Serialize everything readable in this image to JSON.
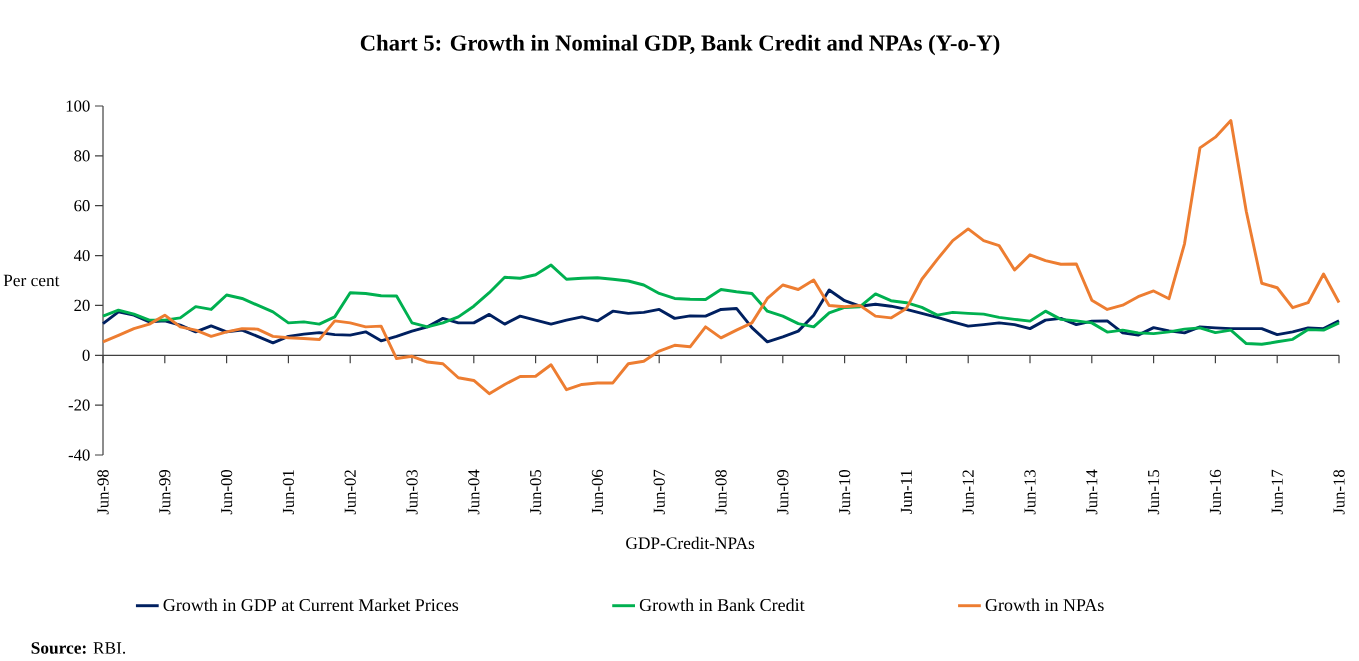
{
  "chart_data": {
    "type": "line",
    "title": "Chart 5: Growth in Nominal GDP, Bank Credit and NPAs (Y-o-Y)",
    "xlabel": "GDP-Credit-NPAs",
    "ylabel": "Per cent",
    "categories": [
      "Jun-98",
      null,
      null,
      null,
      "Jun-99",
      null,
      null,
      null,
      "Jun-00",
      null,
      null,
      null,
      "Jun-01",
      null,
      null,
      null,
      "Jun-02",
      null,
      null,
      null,
      "Jun-03",
      null,
      null,
      null,
      "Jun-04",
      null,
      null,
      null,
      "Jun-05",
      null,
      null,
      null,
      "Jun-06",
      null,
      null,
      null,
      "Jun-07",
      null,
      null,
      null,
      "Jun-08",
      null,
      null,
      null,
      "Jun-09",
      null,
      null,
      null,
      "Jun-10",
      null,
      null,
      null,
      "Jun-11",
      null,
      null,
      null,
      "Jun-12",
      null,
      null,
      null,
      "Jun-13",
      null,
      null,
      null,
      "Jun-14",
      null,
      null,
      null,
      "Jun-15",
      null,
      null,
      null,
      "Jun-16",
      null,
      null,
      null,
      "Jun-17",
      null,
      null,
      null,
      "Jun-18"
    ],
    "series": [
      {
        "name": "Growth in GDP at Current Market Prices",
        "color": "#002060",
        "values": [
          12.7,
          17.4,
          16.1,
          13.4,
          13.8,
          12.1,
          9.4,
          11.8,
          9.4,
          10.1,
          7.6,
          5.0,
          7.6,
          8.5,
          9.1,
          8.3,
          8.1,
          9.4,
          5.8,
          7.6,
          9.7,
          11.4,
          14.8,
          13.0,
          13.0,
          16.4,
          12.5,
          15.7,
          14.1,
          12.5,
          14.1,
          15.4,
          13.8,
          17.7,
          16.8,
          17.2,
          18.4,
          14.8,
          15.8,
          15.7,
          18.4,
          18.8,
          11.1,
          5.4,
          7.4,
          9.7,
          16.1,
          26.2,
          21.9,
          19.7,
          20.5,
          19.7,
          18.4,
          16.8,
          15.2,
          13.4,
          11.7,
          12.3,
          13.0,
          12.3,
          10.7,
          14.1,
          14.8,
          12.3,
          13.7,
          13.8,
          9.0,
          8.1,
          11.1,
          9.8,
          9.0,
          11.4,
          11.0,
          10.7,
          10.7,
          10.7,
          8.3,
          9.4,
          11.0,
          10.7,
          13.8
        ]
      },
      {
        "name": "Growth in Bank Credit",
        "color": "#00b050",
        "values": [
          15.7,
          18.1,
          16.5,
          14.1,
          14.1,
          15.0,
          19.5,
          18.4,
          24.2,
          22.8,
          20.1,
          17.4,
          13.0,
          13.4,
          12.5,
          15.4,
          25.1,
          24.8,
          23.9,
          23.8,
          13.0,
          11.4,
          13.0,
          15.4,
          19.7,
          25.1,
          31.3,
          30.9,
          32.3,
          36.2,
          30.5,
          30.9,
          31.1,
          30.5,
          29.8,
          28.2,
          24.8,
          22.8,
          22.5,
          22.4,
          26.4,
          25.5,
          24.8,
          17.7,
          15.7,
          12.7,
          11.4,
          17.0,
          19.2,
          19.5,
          24.6,
          21.9,
          21.1,
          19.2,
          16.1,
          17.2,
          16.8,
          16.5,
          15.2,
          14.4,
          13.7,
          17.7,
          14.4,
          13.8,
          13.0,
          9.3,
          10.1,
          9.0,
          8.7,
          9.4,
          10.5,
          11.0,
          9.1,
          10.1,
          4.7,
          4.4,
          5.4,
          6.4,
          10.3,
          10.1,
          13.0
        ]
      },
      {
        "name": "Growth in NPAs",
        "color": "#ed7d31",
        "values": [
          5.4,
          8.0,
          10.7,
          12.5,
          16.1,
          11.4,
          10.1,
          7.6,
          9.4,
          10.7,
          10.5,
          7.6,
          7.0,
          6.7,
          6.3,
          13.8,
          13.0,
          11.4,
          11.7,
          -1.3,
          -0.4,
          -2.7,
          -3.4,
          -9.0,
          -10.1,
          -15.4,
          -11.7,
          -8.5,
          -8.4,
          -3.8,
          -13.8,
          -11.7,
          -11.1,
          -11.1,
          -3.4,
          -2.4,
          1.7,
          4.0,
          3.4,
          11.4,
          7.0,
          10.1,
          13.0,
          22.8,
          28.2,
          26.4,
          30.2,
          20.0,
          19.5,
          20.0,
          15.7,
          15.0,
          18.8,
          30.5,
          38.5,
          46.0,
          50.7,
          46.0,
          44.0,
          34.2,
          40.3,
          38.0,
          36.5,
          36.6,
          22.1,
          18.4,
          20.1,
          23.5,
          25.8,
          22.7,
          44.7,
          83.2,
          87.5,
          94.2,
          57.7,
          28.9,
          27.1,
          19.1,
          21.1,
          32.6,
          21.2
        ]
      }
    ],
    "ylim": [
      -40,
      100
    ],
    "yticks": [
      -40,
      -20,
      0,
      20,
      40,
      60,
      80,
      100
    ],
    "legend": "bottom",
    "marker": "none",
    "line_style": "solid",
    "annotations": [
      "**Source:** RBI."
    ]
  }
}
